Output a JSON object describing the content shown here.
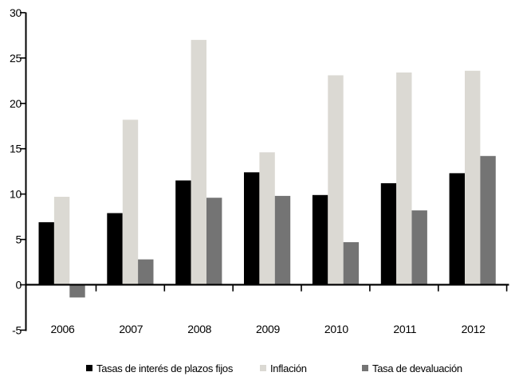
{
  "chart_data": {
    "type": "bar",
    "title": "",
    "xlabel": "",
    "ylabel": "",
    "categories": [
      "2006",
      "2007",
      "2008",
      "2009",
      "2010",
      "2011",
      "2012"
    ],
    "series": [
      {
        "name": "Tasas de interés de plazos fijos",
        "color": "#000000",
        "values": [
          6.9,
          7.9,
          11.5,
          12.4,
          9.9,
          11.2,
          12.3
        ]
      },
      {
        "name": "Inflación",
        "color": "#dbd9d3",
        "values": [
          9.7,
          18.2,
          27.0,
          14.6,
          23.1,
          23.4,
          23.6
        ]
      },
      {
        "name": "Tasa de devaluación",
        "color": "#747474",
        "values": [
          -1.4,
          2.8,
          9.6,
          9.8,
          4.7,
          8.2,
          14.2
        ]
      }
    ],
    "ylim": [
      -5,
      30
    ],
    "yticks": [
      -5,
      0,
      5,
      10,
      15,
      20,
      25,
      30
    ],
    "grid": false,
    "legend_position": "bottom",
    "axis_color": "#000000",
    "background": "#ffffff"
  }
}
